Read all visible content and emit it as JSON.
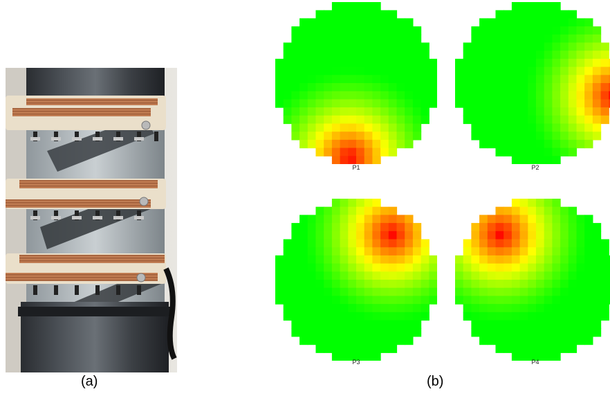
{
  "panel_a": {
    "caption": "(a)"
  },
  "panel_b": {
    "caption": "(b)",
    "maps": [
      {
        "label": "P1",
        "hot_spot": "bottom"
      },
      {
        "label": "P2",
        "hot_spot": "right"
      },
      {
        "label": "P3",
        "hot_spot": "top-right"
      },
      {
        "label": "P4",
        "hot_spot": "top-left"
      }
    ],
    "colormap": {
      "low": "#00ff00",
      "mid": "#ffff00",
      "high": "#ff0000"
    }
  }
}
